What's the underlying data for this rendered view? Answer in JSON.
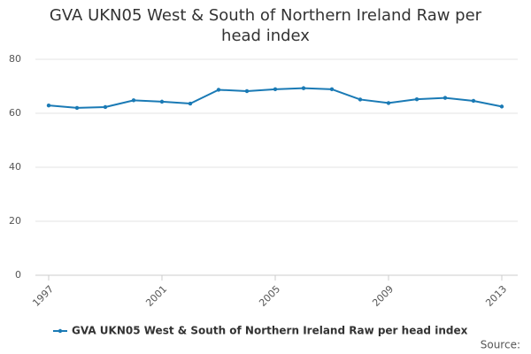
{
  "chart_data": {
    "type": "line",
    "title": "GVA UKN05 West & South of Northern Ireland Raw per head index",
    "x": [
      1997,
      1998,
      1999,
      2000,
      2001,
      2002,
      2003,
      2004,
      2005,
      2006,
      2007,
      2008,
      2009,
      2010,
      2011,
      2012,
      2013
    ],
    "series": [
      {
        "name": "GVA UKN05 West & South of Northern Ireland Raw per head index",
        "color": "#1a7ab5",
        "values": [
          62.9,
          62.0,
          62.3,
          64.8,
          64.3,
          63.6,
          68.7,
          68.2,
          68.9,
          69.3,
          68.9,
          65.1,
          63.8,
          65.2,
          65.7,
          64.6,
          62.5
        ]
      }
    ],
    "xlim": [
      1997,
      2013
    ],
    "xticks": [
      1997,
      2001,
      2005,
      2009,
      2013
    ],
    "ylim": [
      0,
      80
    ],
    "yticks": [
      0,
      20,
      40,
      60,
      80
    ],
    "grid": true,
    "source": "Source:"
  }
}
